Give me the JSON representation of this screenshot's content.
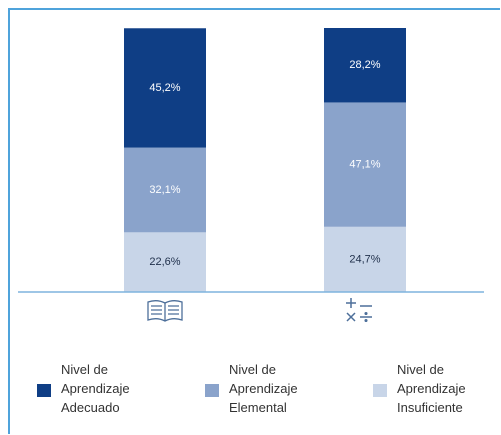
{
  "chart_data": {
    "type": "stacked_bar",
    "categories": [
      null,
      null
    ],
    "ylim": [
      0,
      100
    ],
    "series": [
      {
        "name": "Nivel de Aprendizaje Insuficiente",
        "color": "#c8d5e8",
        "text_color": "#1f2f4a",
        "values": [
          22.6,
          24.7
        ],
        "value_labels": [
          "22,6%",
          "24,7%"
        ]
      },
      {
        "name": "Nivel de Aprendizaje Elemental",
        "color": "#8aa3cb",
        "text_color": "#ffffff",
        "values": [
          32.1,
          47.1
        ],
        "value_labels": [
          "32,1%",
          "47,1%"
        ]
      },
      {
        "name": "Nivel de Aprendizaje Adecuado",
        "color": "#0f3e85",
        "text_color": "#ffffff",
        "values": [
          45.2,
          28.2
        ],
        "value_labels": [
          "45,2%",
          "28,2%"
        ]
      }
    ]
  }
}
